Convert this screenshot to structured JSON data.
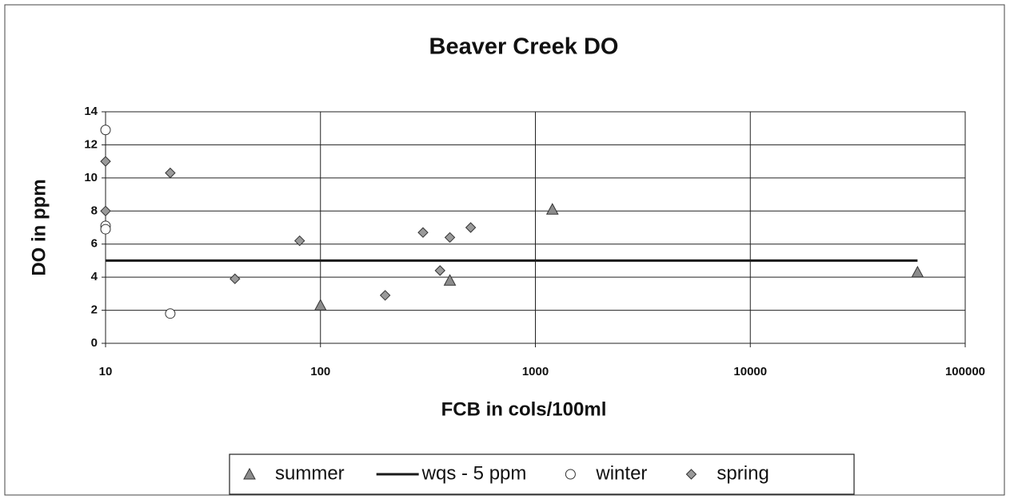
{
  "chart_data": {
    "type": "scatter",
    "title": "Beaver Creek DO",
    "xlabel": "FCB in cols/100ml",
    "ylabel": "DO in ppm",
    "xscale": "log",
    "xlim": [
      10,
      100000
    ],
    "xticks": [
      10,
      100,
      1000,
      10000,
      100000
    ],
    "ylim": [
      0,
      14
    ],
    "yticks": [
      0,
      2,
      4,
      6,
      8,
      10,
      12,
      14
    ],
    "grid": true,
    "legend": "bottom",
    "series": [
      {
        "name": "summer",
        "marker": "triangle",
        "color": "#8c8c8c",
        "x": [
          100,
          400,
          1200,
          60000
        ],
        "values": [
          2.3,
          3.8,
          8.1,
          4.3
        ]
      },
      {
        "name": "wqs - 5 ppm",
        "marker": "line",
        "color": "#1a1a1a",
        "x": [
          10,
          60000
        ],
        "values": [
          5,
          5
        ]
      },
      {
        "name": "winter",
        "marker": "circle",
        "color": "#ffffff",
        "x": [
          10,
          10,
          10,
          20
        ],
        "values": [
          12.9,
          7.1,
          6.9,
          1.8
        ]
      },
      {
        "name": "spring",
        "marker": "diamond",
        "color": "#9a9a9a",
        "x": [
          10,
          10,
          20,
          40,
          80,
          200,
          300,
          360,
          400,
          500
        ],
        "values": [
          11,
          8,
          10.3,
          3.9,
          6.2,
          2.9,
          6.7,
          4.4,
          6.4,
          7
        ]
      }
    ]
  }
}
